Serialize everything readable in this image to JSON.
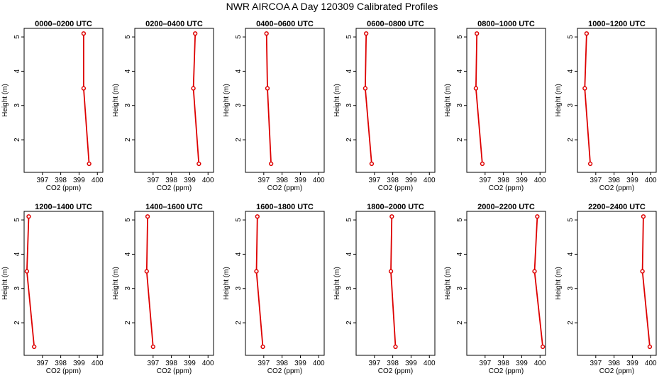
{
  "title": "NWR AIRCOA A  Day 120309  Calibrated Profiles",
  "colors": {
    "series": "#dd0000",
    "axis": "#000000",
    "background": "#ffffff"
  },
  "chart_data": {
    "type": "line",
    "grid": false,
    "legend": "none",
    "xlabel": "CO2 (ppm)",
    "ylabel": "Height (m)",
    "xlim": [
      396.0,
      400.3
    ],
    "ylim": [
      1.05,
      5.25
    ],
    "x_ticks": [
      397,
      398,
      399,
      400
    ],
    "y_ticks": [
      2,
      3,
      4,
      5
    ],
    "panels": [
      {
        "title": "0000–0200 UTC",
        "points": [
          {
            "x": 399.55,
            "y": 1.3
          },
          {
            "x": 399.25,
            "y": 3.5
          },
          {
            "x": 399.25,
            "y": 5.1
          }
        ]
      },
      {
        "title": "0200–0400 UTC",
        "points": [
          {
            "x": 399.5,
            "y": 1.3
          },
          {
            "x": 399.2,
            "y": 3.5
          },
          {
            "x": 399.3,
            "y": 5.1
          }
        ]
      },
      {
        "title": "0400–0600 UTC",
        "points": [
          {
            "x": 397.4,
            "y": 1.3
          },
          {
            "x": 397.2,
            "y": 3.5
          },
          {
            "x": 397.15,
            "y": 5.1
          }
        ]
      },
      {
        "title": "0600–0800 UTC",
        "points": [
          {
            "x": 396.85,
            "y": 1.3
          },
          {
            "x": 396.5,
            "y": 3.5
          },
          {
            "x": 396.55,
            "y": 5.1
          }
        ]
      },
      {
        "title": "0800–1000 UTC",
        "points": [
          {
            "x": 396.85,
            "y": 1.3
          },
          {
            "x": 396.5,
            "y": 3.5
          },
          {
            "x": 396.55,
            "y": 5.1
          }
        ]
      },
      {
        "title": "1000–1200 UTC",
        "points": [
          {
            "x": 396.7,
            "y": 1.3
          },
          {
            "x": 396.4,
            "y": 3.5
          },
          {
            "x": 396.5,
            "y": 5.1
          }
        ]
      },
      {
        "title": "1200–1400 UTC",
        "points": [
          {
            "x": 396.55,
            "y": 1.3
          },
          {
            "x": 396.15,
            "y": 3.5
          },
          {
            "x": 396.25,
            "y": 5.1
          }
        ]
      },
      {
        "title": "1400–1600 UTC",
        "points": [
          {
            "x": 397.0,
            "y": 1.3
          },
          {
            "x": 396.65,
            "y": 3.5
          },
          {
            "x": 396.7,
            "y": 5.1
          }
        ]
      },
      {
        "title": "1600–1800 UTC",
        "points": [
          {
            "x": 396.95,
            "y": 1.3
          },
          {
            "x": 396.6,
            "y": 3.5
          },
          {
            "x": 396.65,
            "y": 5.1
          }
        ]
      },
      {
        "title": "1800–2000 UTC",
        "points": [
          {
            "x": 398.15,
            "y": 1.3
          },
          {
            "x": 397.9,
            "y": 3.5
          },
          {
            "x": 397.95,
            "y": 5.1
          }
        ]
      },
      {
        "title": "2000–2200 UTC",
        "points": [
          {
            "x": 400.15,
            "y": 1.3
          },
          {
            "x": 399.7,
            "y": 3.5
          },
          {
            "x": 399.85,
            "y": 5.1
          }
        ]
      },
      {
        "title": "2200–2400 UTC",
        "points": [
          {
            "x": 399.95,
            "y": 1.3
          },
          {
            "x": 399.55,
            "y": 3.5
          },
          {
            "x": 399.6,
            "y": 5.1
          }
        ]
      }
    ]
  }
}
